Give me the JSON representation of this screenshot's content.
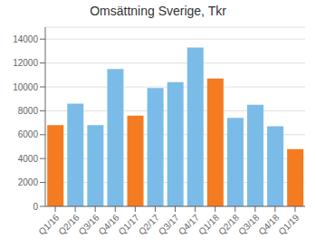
{
  "chart_data": {
    "type": "bar",
    "title": "Omsättning Sverige, Tkr",
    "categories": [
      "Q1/16",
      "Q2/16",
      "Q3/16",
      "Q4/16",
      "Q1/17",
      "Q2/17",
      "Q3/17",
      "Q4/17",
      "Q1/18",
      "Q2/18",
      "Q3/18",
      "Q4/18",
      "Q1/19"
    ],
    "values": [
      6800,
      8600,
      6800,
      11500,
      7600,
      9900,
      10400,
      13300,
      10700,
      7400,
      8500,
      6700,
      4800
    ],
    "colors": [
      "#F47B20",
      "#7ABBE8",
      "#7ABBE8",
      "#7ABBE8",
      "#F47B20",
      "#7ABBE8",
      "#7ABBE8",
      "#7ABBE8",
      "#F47B20",
      "#7ABBE8",
      "#7ABBE8",
      "#7ABBE8",
      "#F47B20"
    ],
    "ylim": [
      0,
      15000
    ],
    "yticks": [
      0,
      2000,
      4000,
      6000,
      8000,
      10000,
      12000,
      14000
    ],
    "grid": true
  }
}
